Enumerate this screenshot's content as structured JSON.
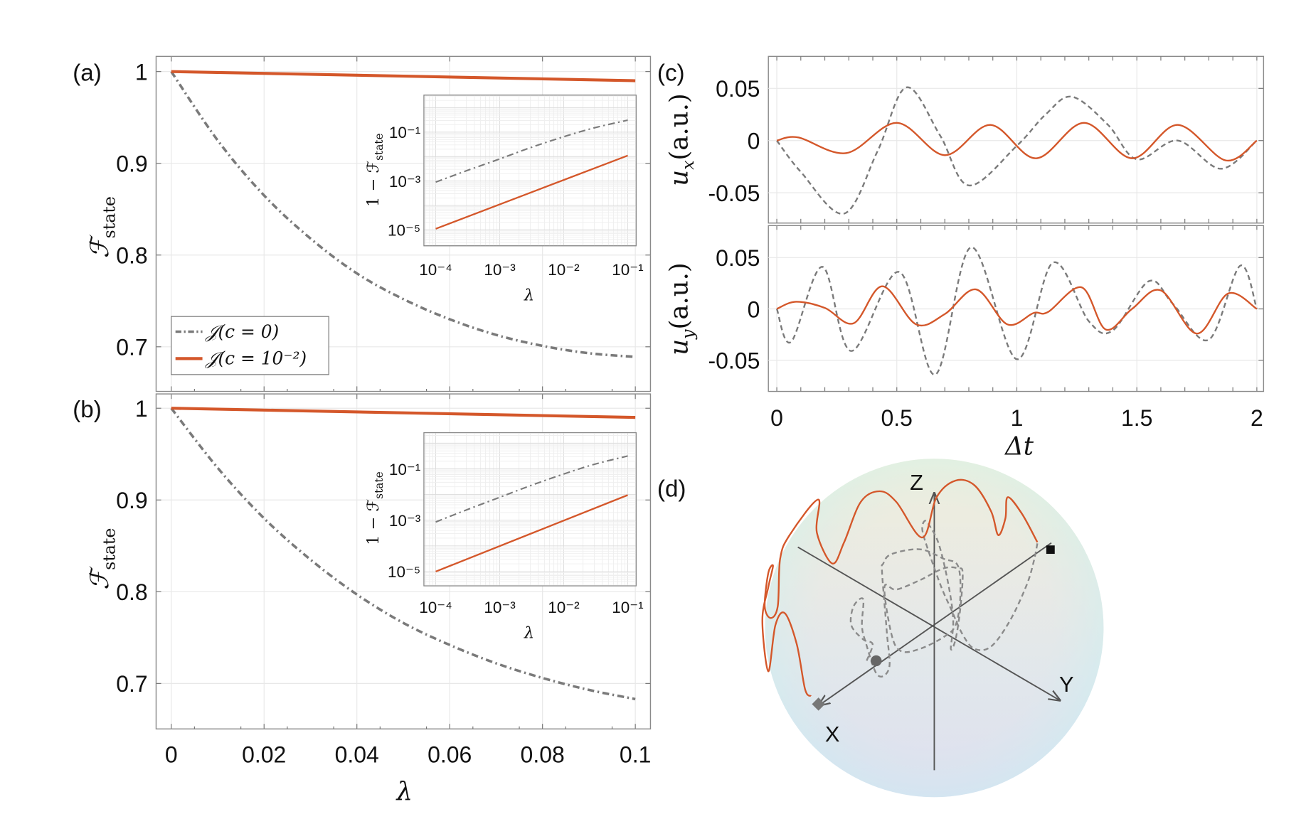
{
  "colors": {
    "gray_series": "#7a7a7a",
    "orange_series": "#d4572a",
    "axis": "#8a8a8a"
  },
  "panels": {
    "a": {
      "label": "(a)"
    },
    "b": {
      "label": "(b)"
    },
    "c": {
      "label": "(c)"
    },
    "d": {
      "label": "(d)"
    }
  },
  "chart_data": [
    {
      "id": "a",
      "type": "line",
      "ylabel_main": "ℱ",
      "ylabel_sub": "state",
      "xlabel": "",
      "xlim": [
        -0.0033,
        0.1034
      ],
      "ylim": [
        0.651,
        1.0165
      ],
      "xticks": [
        "0",
        "0.02",
        "0.04",
        "0.06",
        "0.08",
        "0.1"
      ],
      "yticks": [
        "1",
        "0.9",
        "0.8",
        "0.7"
      ],
      "grid": true,
      "legend_position": "bottom-left",
      "series": [
        {
          "name": "𝒥(c = 0)",
          "style": "dash-dot",
          "x": [
            0,
            0.01,
            0.02,
            0.03,
            0.04,
            0.05,
            0.06,
            0.07,
            0.08,
            0.09,
            0.1
          ],
          "y": [
            1,
            0.925,
            0.865,
            0.818,
            0.78,
            0.752,
            0.73,
            0.713,
            0.701,
            0.693,
            0.689
          ]
        },
        {
          "name": "𝒥(c = 10⁻²)",
          "style": "solid",
          "x": [
            0,
            0.1
          ],
          "y": [
            1,
            0.99
          ]
        }
      ],
      "inset": {
        "type": "line",
        "xscale": "log",
        "yscale": "log",
        "xlabel": "λ",
        "ylabel_main": "1 − ℱ",
        "ylabel_sub": "state",
        "xticks": [
          "10⁻⁴",
          "10⁻³",
          "10⁻²",
          "10⁻¹"
        ],
        "yticks": [
          "10⁻¹",
          "10⁻³",
          "10⁻⁵"
        ],
        "series": [
          {
            "style": "dash-dot",
            "x": [
              0.0001,
              0.0003,
              0.001,
              0.003,
              0.01,
              0.03,
              0.1
            ],
            "y": [
              0.0009,
              0.0026,
              0.008,
              0.023,
              0.065,
              0.15,
              0.31
            ]
          },
          {
            "style": "solid",
            "x": [
              0.0001,
              0.1
            ],
            "y": [
              1.1e-05,
              0.011
            ]
          }
        ]
      }
    },
    {
      "id": "b",
      "type": "line",
      "ylabel_main": "ℱ",
      "ylabel_sub": "state",
      "xlabel": "λ",
      "xlim": [
        -0.0033,
        0.1034
      ],
      "ylim": [
        0.651,
        1.0165
      ],
      "xticks": [
        "0",
        "0.02",
        "0.04",
        "0.06",
        "0.08",
        "0.1"
      ],
      "yticks": [
        "1",
        "0.9",
        "0.8",
        "0.7"
      ],
      "grid": true,
      "series": [
        {
          "name": "𝒥(c = 0)",
          "style": "dash-dot",
          "x": [
            0,
            0.01,
            0.02,
            0.03,
            0.04,
            0.05,
            0.06,
            0.07,
            0.08,
            0.09,
            0.1
          ],
          "y": [
            1,
            0.935,
            0.88,
            0.835,
            0.797,
            0.766,
            0.742,
            0.722,
            0.706,
            0.693,
            0.683
          ]
        },
        {
          "name": "𝒥(c = 10⁻²)",
          "style": "solid",
          "x": [
            0,
            0.1
          ],
          "y": [
            1,
            0.99
          ]
        }
      ],
      "inset": {
        "type": "line",
        "xscale": "log",
        "yscale": "log",
        "xlabel": "λ",
        "ylabel_main": "1 − ℱ",
        "ylabel_sub": "state",
        "xticks": [
          "10⁻⁴",
          "10⁻³",
          "10⁻²",
          "10⁻¹"
        ],
        "yticks": [
          "10⁻¹",
          "10⁻³",
          "10⁻⁵"
        ],
        "series": [
          {
            "style": "dash-dot",
            "x": [
              0.0001,
              0.0003,
              0.001,
              0.003,
              0.01,
              0.03,
              0.1
            ],
            "y": [
              0.00085,
              0.0025,
              0.0078,
              0.022,
              0.063,
              0.15,
              0.317
            ]
          },
          {
            "style": "solid",
            "x": [
              0.0001,
              0.1
            ],
            "y": [
              1e-05,
              0.0095
            ]
          }
        ]
      }
    },
    {
      "id": "c-top",
      "type": "line",
      "ylabel_main": "u",
      "ylabel_sub": "x",
      "ylabel_rest": "(a.u.)",
      "xlim": [
        -0.035,
        2.03
      ],
      "ylim": [
        -0.08,
        0.08
      ],
      "yticks": [
        "0.05",
        "0",
        "-0.05"
      ],
      "grid": true,
      "series": [
        {
          "style": "dashed",
          "x": [
            0,
            0.1,
            0.28,
            0.42,
            0.54,
            0.68,
            0.8,
            1.0,
            1.12,
            1.23,
            1.38,
            1.5,
            1.67,
            1.85,
            2
          ],
          "y": [
            0,
            -0.03,
            -0.07,
            -0.01,
            0.051,
            0.005,
            -0.043,
            -0.005,
            0.025,
            0.042,
            0.015,
            -0.018,
            0,
            -0.027,
            0
          ]
        },
        {
          "style": "solid",
          "x": [
            0,
            0.09,
            0.29,
            0.5,
            0.7,
            0.89,
            1.08,
            1.28,
            1.48,
            1.67,
            1.87,
            2
          ],
          "y": [
            0,
            0.003,
            -0.012,
            0.017,
            -0.014,
            0.015,
            -0.017,
            0.017,
            -0.017,
            0.015,
            -0.019,
            0
          ]
        }
      ]
    },
    {
      "id": "c-bottom",
      "type": "line",
      "ylabel_main": "u",
      "ylabel_sub": "y",
      "ylabel_rest": "(a.u.)",
      "xlabel": "Δt",
      "xlim": [
        -0.035,
        2.03
      ],
      "ylim": [
        -0.08,
        0.08
      ],
      "xticks": [
        "0",
        "0.5",
        "1",
        "1.5",
        "2"
      ],
      "yticks": [
        "0.05",
        "0",
        "-0.05"
      ],
      "grid": true,
      "series": [
        {
          "style": "dashed",
          "x": [
            0,
            0.06,
            0.19,
            0.31,
            0.51,
            0.66,
            0.81,
            1.0,
            1.15,
            1.3,
            1.4,
            1.55,
            1.65,
            1.8,
            1.93,
            2
          ],
          "y": [
            0,
            -0.032,
            0.041,
            -0.041,
            0.036,
            -0.064,
            0.06,
            -0.049,
            0.045,
            -0.012,
            -0.021,
            0.027,
            0.005,
            -0.03,
            0.042,
            0
          ]
        },
        {
          "style": "solid",
          "x": [
            0,
            0.08,
            0.2,
            0.32,
            0.44,
            0.58,
            0.7,
            0.83,
            0.96,
            1.07,
            1.13,
            1.27,
            1.37,
            1.48,
            1.6,
            1.75,
            1.88,
            2
          ],
          "y": [
            0,
            0.007,
            0.001,
            -0.014,
            0.022,
            -0.015,
            -0.005,
            0.019,
            -0.015,
            -0.004,
            -0.003,
            0.021,
            -0.02,
            0,
            0.018,
            -0.024,
            0.015,
            0
          ]
        }
      ]
    }
  ],
  "bloch_sphere": {
    "axes": {
      "x": "X",
      "y": "Y",
      "z": "Z"
    },
    "gradient": [
      "#f4f2d6",
      "#e9ebe6",
      "#dde9ee",
      "#d9dcf4"
    ],
    "markers": [
      "start-diamond",
      "end-square",
      "gray-circle"
    ]
  }
}
